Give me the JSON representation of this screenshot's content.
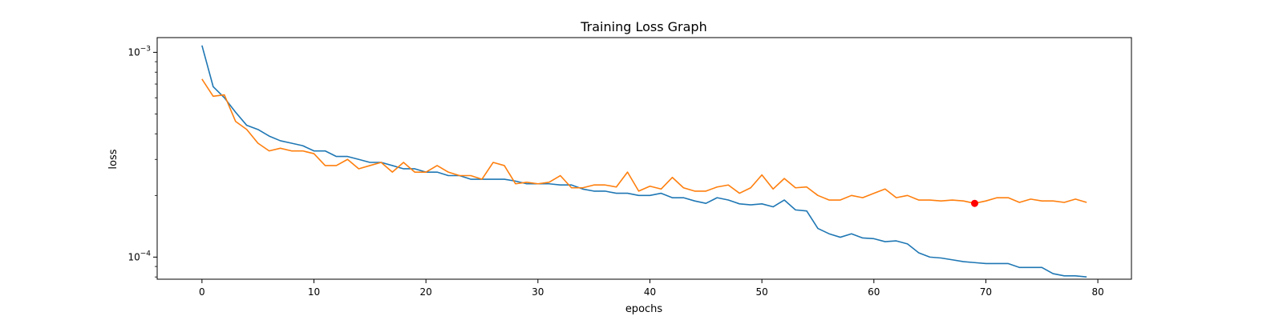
{
  "chart_data": {
    "type": "line",
    "title": "Training Loss Graph",
    "xlabel": "epochs",
    "ylabel": "loss",
    "yscale": "log",
    "xlim": [
      -4,
      83
    ],
    "ylim": [
      7.8e-05,
      0.00118
    ],
    "x_ticks": [
      0,
      10,
      20,
      30,
      40,
      50,
      60,
      70,
      80
    ],
    "y_ticks": [
      {
        "value": 0.001,
        "base": "10",
        "exp": "−3"
      },
      {
        "value": 0.0001,
        "base": "10",
        "exp": "−4"
      }
    ],
    "grid": false,
    "legend": "none",
    "series": [
      {
        "color": "#1f77b4",
        "values": [
          0.00108,
          0.00068,
          0.0006,
          0.00051,
          0.00044,
          0.00042,
          0.00039,
          0.00037,
          0.00036,
          0.00035,
          0.00033,
          0.00033,
          0.00031,
          0.00031,
          0.0003,
          0.00029,
          0.00029,
          0.00028,
          0.00027,
          0.00027,
          0.00026,
          0.00026,
          0.00025,
          0.00025,
          0.00024,
          0.00024,
          0.00024,
          0.00024,
          0.000235,
          0.000228,
          0.000228,
          0.000228,
          0.000225,
          0.000225,
          0.000215,
          0.00021,
          0.00021,
          0.000205,
          0.000205,
          0.0002,
          0.0002,
          0.000205,
          0.000195,
          0.000195,
          0.000188,
          0.000183,
          0.000195,
          0.00019,
          0.000182,
          0.00018,
          0.000182,
          0.000176,
          0.00019,
          0.00017,
          0.000168,
          0.000138,
          0.00013,
          0.000125,
          0.00013,
          0.000124,
          0.000123,
          0.000119,
          0.00012,
          0.000116,
          0.000105,
          0.0001,
          9.9e-05,
          9.7e-05,
          9.5e-05,
          9.4e-05,
          9.3e-05,
          9.3e-05,
          9.3e-05,
          8.9e-05,
          8.9e-05,
          8.9e-05,
          8.3e-05,
          8.1e-05,
          8.1e-05,
          8e-05
        ]
      },
      {
        "color": "#ff7f0e",
        "values": [
          0.00074,
          0.00061,
          0.00062,
          0.00046,
          0.00042,
          0.00036,
          0.00033,
          0.00034,
          0.00033,
          0.00033,
          0.00032,
          0.00028,
          0.00028,
          0.0003,
          0.00027,
          0.00028,
          0.00029,
          0.00026,
          0.00029,
          0.00026,
          0.00026,
          0.00028,
          0.00026,
          0.00025,
          0.00025,
          0.00024,
          0.00029,
          0.00028,
          0.000228,
          0.000232,
          0.000228,
          0.000232,
          0.00025,
          0.000218,
          0.000218,
          0.000225,
          0.000225,
          0.00022,
          0.00026,
          0.00021,
          0.000222,
          0.000215,
          0.000245,
          0.000218,
          0.00021,
          0.00021,
          0.00022,
          0.000225,
          0.000205,
          0.000218,
          0.000252,
          0.000215,
          0.000242,
          0.000218,
          0.00022,
          0.0002,
          0.00019,
          0.00019,
          0.0002,
          0.000195,
          0.000205,
          0.000215,
          0.000195,
          0.0002,
          0.00019,
          0.00019,
          0.000188,
          0.00019,
          0.000188,
          0.000183,
          0.000188,
          0.000195,
          0.000195,
          0.000185,
          0.000192,
          0.000188,
          0.000188,
          0.000185,
          0.000192,
          0.000185
        ]
      }
    ],
    "marker": {
      "x": 69,
      "y": 0.000183,
      "color": "#ff0000"
    }
  }
}
